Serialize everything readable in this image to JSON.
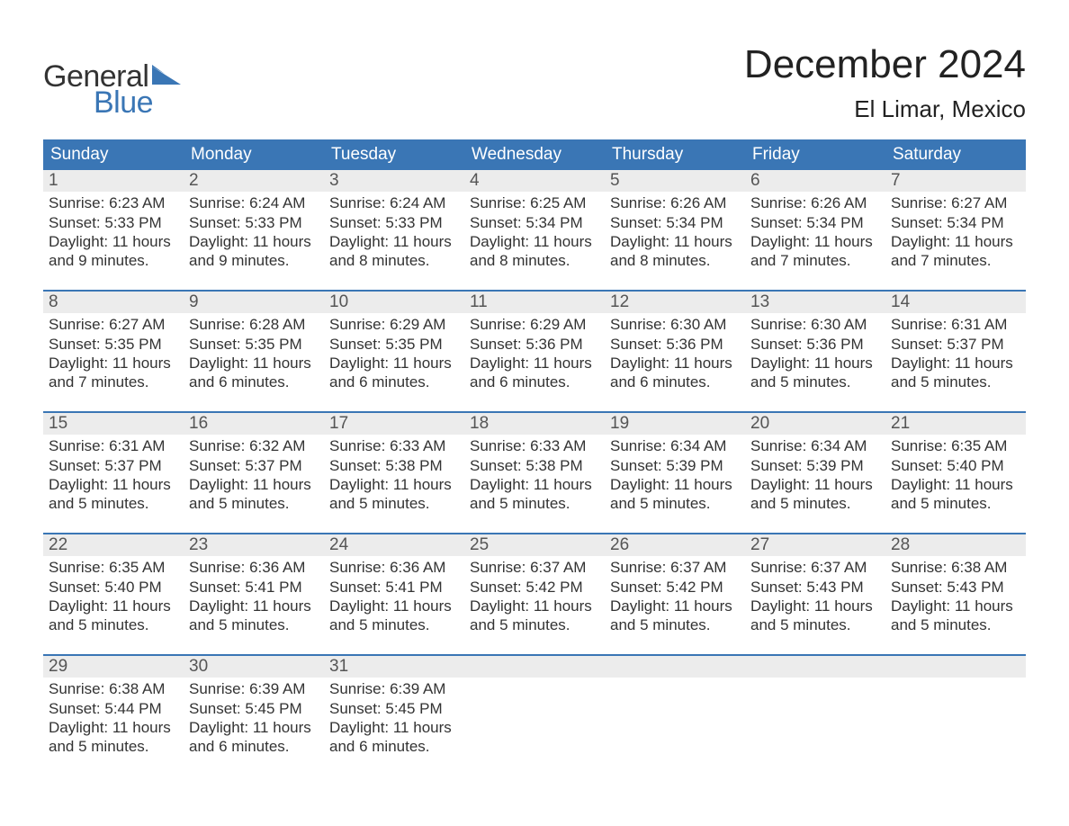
{
  "logo": {
    "text1": "General",
    "text2": "Blue",
    "icon_color": "#3a76b5"
  },
  "title": "December 2024",
  "location": "El Limar, Mexico",
  "colors": {
    "header_bg": "#3a76b5",
    "header_text": "#ffffff",
    "daynum_bg": "#ececec",
    "rule": "#3a76b5",
    "body_text": "#333333",
    "logo_blue": "#3a76b5"
  },
  "day_names": [
    "Sunday",
    "Monday",
    "Tuesday",
    "Wednesday",
    "Thursday",
    "Friday",
    "Saturday"
  ],
  "weeks": [
    [
      {
        "n": "1",
        "sr": "6:23 AM",
        "ss": "5:33 PM",
        "dl": "11 hours",
        "dl2": "and 9 minutes."
      },
      {
        "n": "2",
        "sr": "6:24 AM",
        "ss": "5:33 PM",
        "dl": "11 hours",
        "dl2": "and 9 minutes."
      },
      {
        "n": "3",
        "sr": "6:24 AM",
        "ss": "5:33 PM",
        "dl": "11 hours",
        "dl2": "and 8 minutes."
      },
      {
        "n": "4",
        "sr": "6:25 AM",
        "ss": "5:34 PM",
        "dl": "11 hours",
        "dl2": "and 8 minutes."
      },
      {
        "n": "5",
        "sr": "6:26 AM",
        "ss": "5:34 PM",
        "dl": "11 hours",
        "dl2": "and 8 minutes."
      },
      {
        "n": "6",
        "sr": "6:26 AM",
        "ss": "5:34 PM",
        "dl": "11 hours",
        "dl2": "and 7 minutes."
      },
      {
        "n": "7",
        "sr": "6:27 AM",
        "ss": "5:34 PM",
        "dl": "11 hours",
        "dl2": "and 7 minutes."
      }
    ],
    [
      {
        "n": "8",
        "sr": "6:27 AM",
        "ss": "5:35 PM",
        "dl": "11 hours",
        "dl2": "and 7 minutes."
      },
      {
        "n": "9",
        "sr": "6:28 AM",
        "ss": "5:35 PM",
        "dl": "11 hours",
        "dl2": "and 6 minutes."
      },
      {
        "n": "10",
        "sr": "6:29 AM",
        "ss": "5:35 PM",
        "dl": "11 hours",
        "dl2": "and 6 minutes."
      },
      {
        "n": "11",
        "sr": "6:29 AM",
        "ss": "5:36 PM",
        "dl": "11 hours",
        "dl2": "and 6 minutes."
      },
      {
        "n": "12",
        "sr": "6:30 AM",
        "ss": "5:36 PM",
        "dl": "11 hours",
        "dl2": "and 6 minutes."
      },
      {
        "n": "13",
        "sr": "6:30 AM",
        "ss": "5:36 PM",
        "dl": "11 hours",
        "dl2": "and 5 minutes."
      },
      {
        "n": "14",
        "sr": "6:31 AM",
        "ss": "5:37 PM",
        "dl": "11 hours",
        "dl2": "and 5 minutes."
      }
    ],
    [
      {
        "n": "15",
        "sr": "6:31 AM",
        "ss": "5:37 PM",
        "dl": "11 hours",
        "dl2": "and 5 minutes."
      },
      {
        "n": "16",
        "sr": "6:32 AM",
        "ss": "5:37 PM",
        "dl": "11 hours",
        "dl2": "and 5 minutes."
      },
      {
        "n": "17",
        "sr": "6:33 AM",
        "ss": "5:38 PM",
        "dl": "11 hours",
        "dl2": "and 5 minutes."
      },
      {
        "n": "18",
        "sr": "6:33 AM",
        "ss": "5:38 PM",
        "dl": "11 hours",
        "dl2": "and 5 minutes."
      },
      {
        "n": "19",
        "sr": "6:34 AM",
        "ss": "5:39 PM",
        "dl": "11 hours",
        "dl2": "and 5 minutes."
      },
      {
        "n": "20",
        "sr": "6:34 AM",
        "ss": "5:39 PM",
        "dl": "11 hours",
        "dl2": "and 5 minutes."
      },
      {
        "n": "21",
        "sr": "6:35 AM",
        "ss": "5:40 PM",
        "dl": "11 hours",
        "dl2": "and 5 minutes."
      }
    ],
    [
      {
        "n": "22",
        "sr": "6:35 AM",
        "ss": "5:40 PM",
        "dl": "11 hours",
        "dl2": "and 5 minutes."
      },
      {
        "n": "23",
        "sr": "6:36 AM",
        "ss": "5:41 PM",
        "dl": "11 hours",
        "dl2": "and 5 minutes."
      },
      {
        "n": "24",
        "sr": "6:36 AM",
        "ss": "5:41 PM",
        "dl": "11 hours",
        "dl2": "and 5 minutes."
      },
      {
        "n": "25",
        "sr": "6:37 AM",
        "ss": "5:42 PM",
        "dl": "11 hours",
        "dl2": "and 5 minutes."
      },
      {
        "n": "26",
        "sr": "6:37 AM",
        "ss": "5:42 PM",
        "dl": "11 hours",
        "dl2": "and 5 minutes."
      },
      {
        "n": "27",
        "sr": "6:37 AM",
        "ss": "5:43 PM",
        "dl": "11 hours",
        "dl2": "and 5 minutes."
      },
      {
        "n": "28",
        "sr": "6:38 AM",
        "ss": "5:43 PM",
        "dl": "11 hours",
        "dl2": "and 5 minutes."
      }
    ],
    [
      {
        "n": "29",
        "sr": "6:38 AM",
        "ss": "5:44 PM",
        "dl": "11 hours",
        "dl2": "and 5 minutes."
      },
      {
        "n": "30",
        "sr": "6:39 AM",
        "ss": "5:45 PM",
        "dl": "11 hours",
        "dl2": "and 6 minutes."
      },
      {
        "n": "31",
        "sr": "6:39 AM",
        "ss": "5:45 PM",
        "dl": "11 hours",
        "dl2": "and 6 minutes."
      },
      null,
      null,
      null,
      null
    ]
  ],
  "labels": {
    "sunrise_prefix": "Sunrise: ",
    "sunset_prefix": "Sunset: ",
    "daylight_prefix": "Daylight: "
  }
}
